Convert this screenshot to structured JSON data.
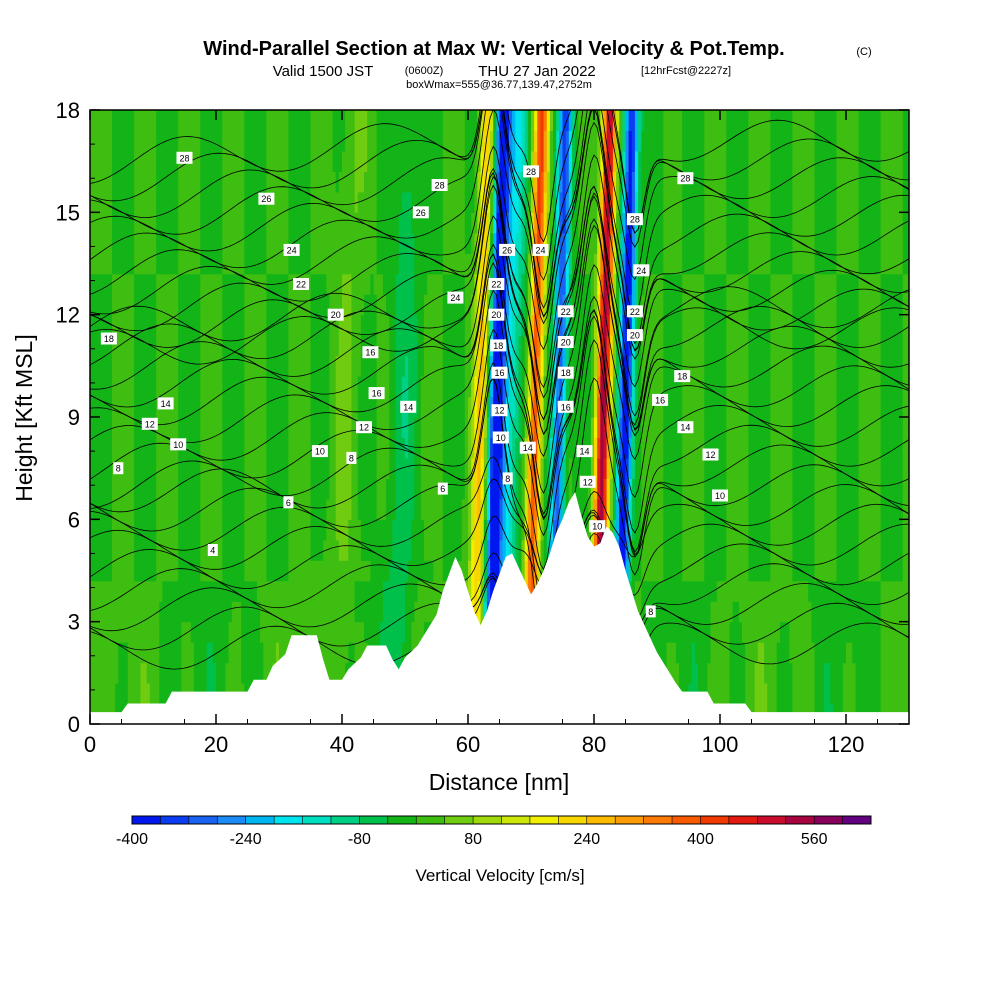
{
  "chart_data": {
    "type": "heatmap",
    "title": "Wind-Parallel Section at Max W: Vertical Velocity & Pot.Temp.",
    "title_mark": "(C)",
    "subtitle_valid": "Valid 1500 JST",
    "subtitle_utc": "(0600Z)",
    "subtitle_date": "THU 27 Jan 2022",
    "subtitle_fcst": "[12hrFcst@2227z]",
    "subtitle_box": "boxWmax=555@36.77,139.47,2752m",
    "xlabel": "Distance [nm]",
    "ylabel": "Height [Kft MSL]",
    "xlim": [
      0,
      130
    ],
    "ylim": [
      0,
      18
    ],
    "x_ticks": [
      "0",
      "20",
      "40",
      "60",
      "80",
      "100",
      "120"
    ],
    "y_ticks": [
      "0",
      "3",
      "6",
      "9",
      "12",
      "15",
      "18"
    ],
    "terrain_profile": [
      [
        0,
        0.35
      ],
      [
        5,
        0.35
      ],
      [
        6,
        0.6
      ],
      [
        12,
        0.6
      ],
      [
        13,
        0.95
      ],
      [
        25,
        0.95
      ],
      [
        26,
        1.3
      ],
      [
        28,
        1.3
      ],
      [
        29,
        1.7
      ],
      [
        31,
        2.05
      ],
      [
        32,
        2.6
      ],
      [
        36,
        2.6
      ],
      [
        37,
        1.9
      ],
      [
        38,
        1.3
      ],
      [
        40,
        1.3
      ],
      [
        41,
        1.6
      ],
      [
        43,
        1.95
      ],
      [
        44,
        2.3
      ],
      [
        47,
        2.3
      ],
      [
        48,
        1.9
      ],
      [
        49,
        1.6
      ],
      [
        50,
        1.95
      ],
      [
        52,
        2.3
      ],
      [
        53,
        2.6
      ],
      [
        55,
        3.2
      ],
      [
        56,
        3.9
      ],
      [
        58,
        4.9
      ],
      [
        59,
        4.5
      ],
      [
        60,
        3.9
      ],
      [
        61,
        3.3
      ],
      [
        62,
        2.9
      ],
      [
        63,
        3.3
      ],
      [
        64,
        3.9
      ],
      [
        65,
        4.4
      ],
      [
        66,
        4.9
      ],
      [
        67,
        5.0
      ],
      [
        68,
        4.6
      ],
      [
        69,
        4.2
      ],
      [
        70,
        3.8
      ],
      [
        71,
        4.1
      ],
      [
        72,
        4.5
      ],
      [
        73,
        5.0
      ],
      [
        74,
        5.6
      ],
      [
        75,
        6.0
      ],
      [
        76,
        6.5
      ],
      [
        77,
        6.8
      ],
      [
        78,
        6.1
      ],
      [
        79,
        5.5
      ],
      [
        80,
        5.2
      ],
      [
        81,
        5.3
      ],
      [
        82,
        5.8
      ],
      [
        83,
        5.6
      ],
      [
        84,
        5.2
      ],
      [
        85,
        4.5
      ],
      [
        86,
        3.9
      ],
      [
        87,
        3.3
      ],
      [
        88,
        2.9
      ],
      [
        89,
        2.5
      ],
      [
        90,
        2.1
      ],
      [
        91,
        1.8
      ],
      [
        92,
        1.5
      ],
      [
        93,
        1.2
      ],
      [
        94,
        0.95
      ],
      [
        98,
        0.95
      ],
      [
        99,
        0.6
      ],
      [
        104,
        0.6
      ],
      [
        105,
        0.35
      ],
      [
        130,
        0.35
      ]
    ],
    "vertical_velocity_bands": [
      {
        "x": 62.3,
        "peak_cm_s": 240
      },
      {
        "x": 64.9,
        "peak_cm_s": -400
      },
      {
        "x": 66.8,
        "peak_cm_s": -160
      },
      {
        "x": 71.0,
        "peak_cm_s": 400
      },
      {
        "x": 74.8,
        "peak_cm_s": -320
      },
      {
        "x": 81.8,
        "peak_cm_s": 540
      },
      {
        "x": 85.3,
        "peak_cm_s": -400
      },
      {
        "x": 50.0,
        "peak_cm_s": -60
      },
      {
        "x": 41.0,
        "peak_cm_s": 40
      }
    ],
    "potential_temperature_labels": [
      {
        "text": "28",
        "x": 15,
        "y": 16.6
      },
      {
        "text": "26",
        "x": 28,
        "y": 15.4
      },
      {
        "text": "24",
        "x": 32,
        "y": 13.9
      },
      {
        "text": "22",
        "x": 33.5,
        "y": 12.9
      },
      {
        "text": "20",
        "x": 39,
        "y": 12.0
      },
      {
        "text": "18",
        "x": 3,
        "y": 11.3
      },
      {
        "text": "16",
        "x": 44.5,
        "y": 10.9
      },
      {
        "text": "16",
        "x": 45.5,
        "y": 9.7
      },
      {
        "text": "14",
        "x": 12,
        "y": 9.4
      },
      {
        "text": "14",
        "x": 50.5,
        "y": 9.3
      },
      {
        "text": "12",
        "x": 9.5,
        "y": 8.8
      },
      {
        "text": "12",
        "x": 43.5,
        "y": 8.7
      },
      {
        "text": "10",
        "x": 14,
        "y": 8.2
      },
      {
        "text": "10",
        "x": 36.5,
        "y": 8.0
      },
      {
        "text": "8",
        "x": 4.5,
        "y": 7.5
      },
      {
        "text": "8",
        "x": 41.5,
        "y": 7.8
      },
      {
        "text": "6",
        "x": 31.5,
        "y": 6.5
      },
      {
        "text": "6",
        "x": 56,
        "y": 6.9
      },
      {
        "text": "4",
        "x": 19.5,
        "y": 5.1
      },
      {
        "text": "28",
        "x": 55.5,
        "y": 15.8
      },
      {
        "text": "26",
        "x": 52.5,
        "y": 15.0
      },
      {
        "text": "24",
        "x": 58,
        "y": 12.5
      },
      {
        "text": "22",
        "x": 64.5,
        "y": 12.9
      },
      {
        "text": "20",
        "x": 64.5,
        "y": 12.0
      },
      {
        "text": "18",
        "x": 64.8,
        "y": 11.1
      },
      {
        "text": "16",
        "x": 65,
        "y": 10.3
      },
      {
        "text": "12",
        "x": 65,
        "y": 9.2
      },
      {
        "text": "10",
        "x": 65.2,
        "y": 8.4
      },
      {
        "text": "8",
        "x": 66.3,
        "y": 7.2
      },
      {
        "text": "14",
        "x": 69.5,
        "y": 8.1
      },
      {
        "text": "26",
        "x": 66.2,
        "y": 13.9
      },
      {
        "text": "28",
        "x": 70,
        "y": 16.2
      },
      {
        "text": "24",
        "x": 71.5,
        "y": 13.9
      },
      {
        "text": "22",
        "x": 75.5,
        "y": 12.1
      },
      {
        "text": "20",
        "x": 75.5,
        "y": 11.2
      },
      {
        "text": "18",
        "x": 75.5,
        "y": 10.3
      },
      {
        "text": "16",
        "x": 75.5,
        "y": 9.3
      },
      {
        "text": "14",
        "x": 78.5,
        "y": 8.0
      },
      {
        "text": "12",
        "x": 79,
        "y": 7.1
      },
      {
        "text": "10",
        "x": 80.5,
        "y": 5.8
      },
      {
        "text": "28",
        "x": 86.5,
        "y": 14.8
      },
      {
        "text": "24",
        "x": 87.5,
        "y": 13.3
      },
      {
        "text": "22",
        "x": 86.5,
        "y": 12.1
      },
      {
        "text": "20",
        "x": 86.5,
        "y": 11.4
      },
      {
        "text": "18",
        "x": 94,
        "y": 10.2
      },
      {
        "text": "16",
        "x": 90.5,
        "y": 9.5
      },
      {
        "text": "14",
        "x": 94.5,
        "y": 8.7
      },
      {
        "text": "12",
        "x": 98.5,
        "y": 7.9
      },
      {
        "text": "10",
        "x": 100,
        "y": 6.7
      },
      {
        "text": "8",
        "x": 89,
        "y": 3.3
      },
      {
        "text": "28",
        "x": 94.5,
        "y": 16.0
      }
    ],
    "colorbar": {
      "label": "Vertical Velocity [cm/s]",
      "tick_labels": [
        "-400",
        "-240",
        "-80",
        "80",
        "240",
        "400",
        "560"
      ],
      "levels": [
        -400,
        -360,
        -320,
        -280,
        -240,
        -200,
        -160,
        -120,
        -80,
        -40,
        0,
        40,
        80,
        120,
        160,
        200,
        240,
        280,
        320,
        360,
        400,
        440,
        480,
        520,
        560,
        600
      ],
      "colors": [
        "#0018ef",
        "#0a3df2",
        "#1a62f2",
        "#1b8bf5",
        "#00b6f2",
        "#00e4ee",
        "#00e0c0",
        "#00d086",
        "#00c04c",
        "#12b418",
        "#3ebe10",
        "#6fcc10",
        "#a0da0c",
        "#cce60a",
        "#f0f000",
        "#f8d600",
        "#fcba00",
        "#fc9c06",
        "#fc7a06",
        "#f85a02",
        "#f03a02",
        "#e41a12",
        "#cc0c2c",
        "#a80440",
        "#88005c",
        "#640082"
      ]
    }
  }
}
